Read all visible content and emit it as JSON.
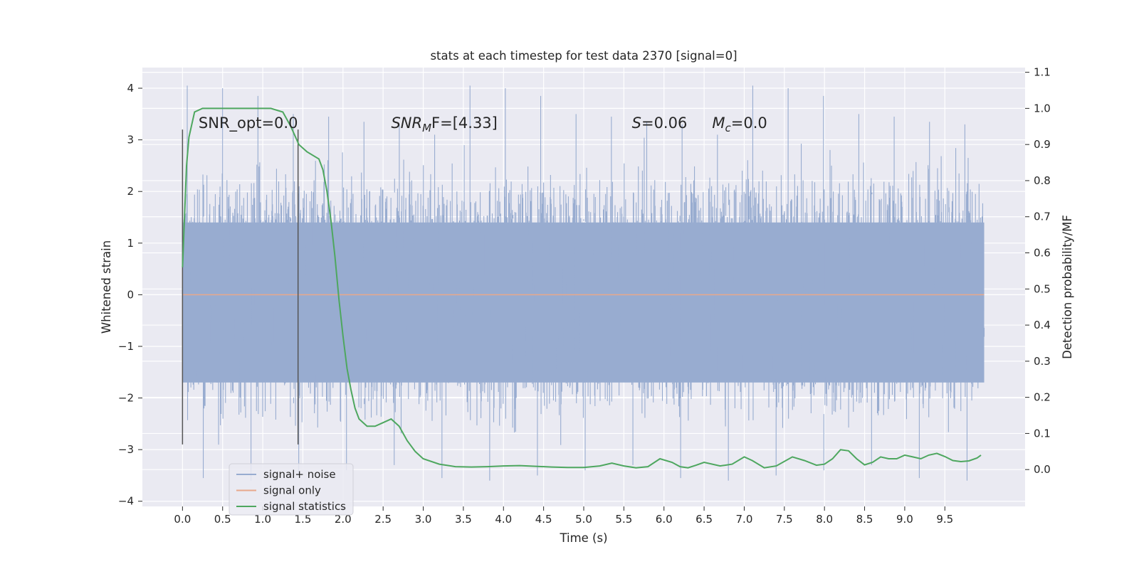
{
  "chart_data": {
    "type": "line",
    "title": "stats at each timestep for test data 2370 [signal=0]",
    "xlabel": "Time (s)",
    "ylabel": "Whitened strain",
    "y2label": "Detection probability/MF",
    "xlim": [
      -0.5,
      10.5
    ],
    "ylim": [
      -4.1,
      4.4
    ],
    "y2lim": [
      -0.102,
      1.113
    ],
    "xticks": [
      "0.0",
      "0.5",
      "1.0",
      "1.5",
      "2.0",
      "2.5",
      "3.0",
      "3.5",
      "4.0",
      "4.5",
      "5.0",
      "5.5",
      "6.0",
      "6.5",
      "7.0",
      "7.5",
      "8.0",
      "8.5",
      "9.0",
      "9.5"
    ],
    "yticks": [
      "−4",
      "−3",
      "−2",
      "−1",
      "0",
      "1",
      "2",
      "3",
      "4"
    ],
    "y2ticks": [
      "0.0",
      "0.1",
      "0.2",
      "0.3",
      "0.4",
      "0.5",
      "0.6",
      "0.7",
      "0.8",
      "0.9",
      "1.0",
      "1.1"
    ],
    "grid": true,
    "legend_position": "lower-left",
    "colors": {
      "noise": "#98acd0",
      "signal": "#e8a88b",
      "stats": "#4ea75f",
      "background": "#eaeaf2",
      "marker": "#555555"
    },
    "series": [
      {
        "name": "signal+ noise",
        "axis": "left",
        "x_range": [
          0.0,
          9.99
        ],
        "typical_band": [
          -1.7,
          1.4
        ],
        "peaks_high": [
          4.05,
          4.0,
          3.85,
          3.5,
          3.45,
          3.35,
          3.3,
          3.1
        ],
        "peaks_low": [
          -3.55,
          -3.6,
          -3.5,
          -3.4,
          -3.3
        ]
      },
      {
        "name": "signal only",
        "axis": "left",
        "x": [
          0.0,
          9.99
        ],
        "y": [
          0.0,
          0.0
        ]
      },
      {
        "name": "signal statistics",
        "axis": "right",
        "x": [
          0.0,
          0.05,
          0.08,
          0.15,
          0.25,
          0.35,
          0.5,
          0.7,
          0.9,
          1.1,
          1.25,
          1.35,
          1.45,
          1.55,
          1.7,
          1.75,
          1.8,
          1.85,
          1.9,
          1.95,
          2.0,
          2.05,
          2.1,
          2.15,
          2.2,
          2.3,
          2.4,
          2.5,
          2.6,
          2.7,
          2.8,
          2.9,
          3.0,
          3.2,
          3.4,
          3.6,
          3.8,
          4.0,
          4.2,
          4.4,
          4.6,
          4.8,
          5.0,
          5.2,
          5.35,
          5.5,
          5.65,
          5.8,
          5.95,
          6.1,
          6.2,
          6.3,
          6.4,
          6.5,
          6.7,
          6.85,
          7.0,
          7.1,
          7.25,
          7.4,
          7.6,
          7.75,
          7.9,
          8.0,
          8.1,
          8.2,
          8.3,
          8.4,
          8.5,
          8.6,
          8.7,
          8.8,
          8.9,
          9.0,
          9.1,
          9.2,
          9.3,
          9.4,
          9.5,
          9.6,
          9.7,
          9.8,
          9.9,
          9.95
        ],
        "y": [
          0.56,
          0.84,
          0.92,
          0.99,
          1.0,
          1.0,
          1.0,
          1.0,
          1.0,
          1.0,
          0.99,
          0.95,
          0.9,
          0.88,
          0.86,
          0.83,
          0.77,
          0.69,
          0.59,
          0.47,
          0.37,
          0.28,
          0.22,
          0.17,
          0.14,
          0.12,
          0.12,
          0.13,
          0.14,
          0.12,
          0.08,
          0.05,
          0.03,
          0.015,
          0.008,
          0.007,
          0.008,
          0.01,
          0.011,
          0.009,
          0.007,
          0.006,
          0.006,
          0.01,
          0.018,
          0.01,
          0.005,
          0.008,
          0.03,
          0.02,
          0.008,
          0.005,
          0.012,
          0.02,
          0.01,
          0.015,
          0.035,
          0.025,
          0.005,
          0.01,
          0.035,
          0.025,
          0.012,
          0.015,
          0.03,
          0.055,
          0.052,
          0.03,
          0.013,
          0.02,
          0.035,
          0.03,
          0.03,
          0.04,
          0.035,
          0.03,
          0.04,
          0.045,
          0.036,
          0.025,
          0.022,
          0.024,
          0.032,
          0.04
        ]
      }
    ],
    "vertical_markers": [
      0.0,
      1.44
    ],
    "annotations": [
      {
        "text": "SNR_opt=0.0",
        "x": 0.2
      },
      {
        "text": "F=[4.33]",
        "italic_prefix": "SNR",
        "subscript": "M",
        "x": 2.6
      },
      {
        "text": "=0.06",
        "italic_prefix": "S",
        "x": 5.6
      },
      {
        "text": "=0.0",
        "italic_prefix": "M",
        "subscript": "c",
        "x": 6.6
      }
    ]
  }
}
